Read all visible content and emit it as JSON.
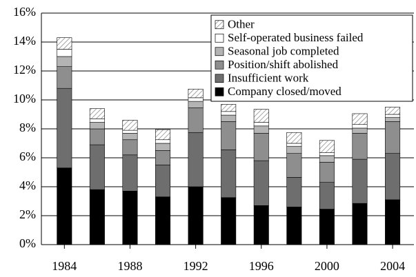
{
  "chart_data": {
    "type": "stacked-bar",
    "x": [
      1984,
      1986,
      1988,
      1990,
      1992,
      1994,
      1996,
      1998,
      2000,
      2002,
      2004
    ],
    "xlim": [
      1982.6,
      2005.3
    ],
    "xticks": [
      1984,
      1988,
      1992,
      1996,
      2000,
      2004
    ],
    "ylim": [
      0,
      16
    ],
    "yticks": [
      {
        "value": 0,
        "label": "0%"
      },
      {
        "value": 2,
        "label": "2%"
      },
      {
        "value": 4,
        "label": "4%"
      },
      {
        "value": 6,
        "label": "6%"
      },
      {
        "value": 8,
        "label": "8%"
      },
      {
        "value": 10,
        "label": "10%"
      },
      {
        "value": 12,
        "label": "12%"
      },
      {
        "value": 14,
        "label": "14%"
      },
      {
        "value": 16,
        "label": "16%"
      }
    ],
    "grid": true,
    "legend": "upper right",
    "series": [
      {
        "name": "Company closed/moved",
        "color": "#000000",
        "values": [
          5.3,
          3.8,
          3.7,
          3.3,
          4.0,
          3.25,
          2.7,
          2.6,
          2.45,
          2.85,
          3.1
        ]
      },
      {
        "name": "Insufficient work",
        "color": "#6e6e6e",
        "values": [
          5.5,
          3.1,
          2.5,
          2.2,
          3.75,
          3.3,
          3.1,
          2.05,
          1.85,
          3.05,
          3.2
        ]
      },
      {
        "name": "Position/shift abolished",
        "color": "#8e8e8e",
        "values": [
          1.5,
          1.1,
          1.05,
          1.0,
          1.7,
          1.95,
          1.9,
          1.65,
          1.4,
          1.8,
          2.2
        ]
      },
      {
        "name": "Seasonal job completed",
        "color": "#b4b4b4",
        "values": [
          0.7,
          0.45,
          0.45,
          0.5,
          0.45,
          0.45,
          0.5,
          0.5,
          0.45,
          0.35,
          0.3
        ]
      },
      {
        "name": "Self-operated business failed",
        "color": "#ffffff",
        "values": [
          0.5,
          0.25,
          0.2,
          0.25,
          0.25,
          0.25,
          0.25,
          0.2,
          0.2,
          0.25,
          0.2
        ]
      },
      {
        "name": "Other",
        "color": "#ffffff",
        "pattern": "hatch",
        "values": [
          0.8,
          0.7,
          0.7,
          0.7,
          0.6,
          0.5,
          0.9,
          0.75,
          0.85,
          0.75,
          0.5
        ]
      }
    ]
  }
}
